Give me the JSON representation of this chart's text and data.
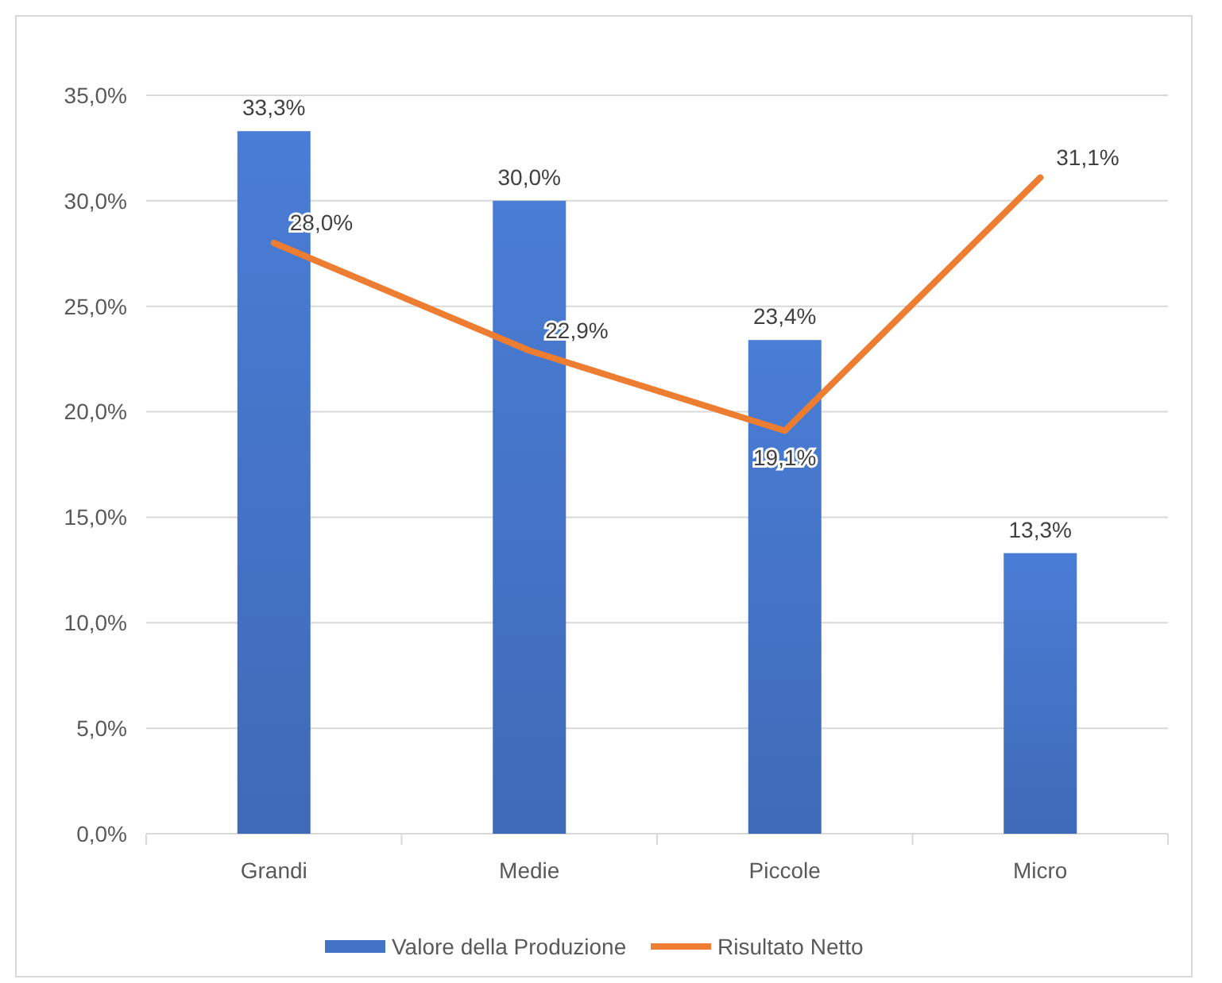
{
  "chart_data": {
    "type": "bar",
    "categories": [
      "Grandi",
      "Medie",
      "Piccole",
      "Micro"
    ],
    "series": [
      {
        "name": "Valore della Produzione",
        "color": "#4472c4",
        "values": [
          33.3,
          30.0,
          23.4,
          13.3
        ],
        "value_labels": [
          "33,3%",
          "30,0%",
          "23,4%",
          "13,3%"
        ]
      },
      {
        "name": "Risultato Netto",
        "type": "line",
        "color": "#ed7d31",
        "values": [
          28.0,
          22.9,
          19.1,
          31.1
        ],
        "value_labels": [
          "28,0%",
          "22,9%",
          "19,1%",
          "31,1%"
        ]
      }
    ],
    "ylim": [
      0,
      35
    ],
    "yticks": [
      {
        "value": 0,
        "label": "0,0%"
      },
      {
        "value": 5,
        "label": "5,0%"
      },
      {
        "value": 10,
        "label": "10,0%"
      },
      {
        "value": 15,
        "label": "15,0%"
      },
      {
        "value": 20,
        "label": "20,0%"
      },
      {
        "value": 25,
        "label": "25,0%"
      },
      {
        "value": 30,
        "label": "30,0%"
      },
      {
        "value": 35,
        "label": "35,0%"
      }
    ],
    "grid": "y",
    "legend": "bottom",
    "marker": "none",
    "line_style": "solid"
  }
}
